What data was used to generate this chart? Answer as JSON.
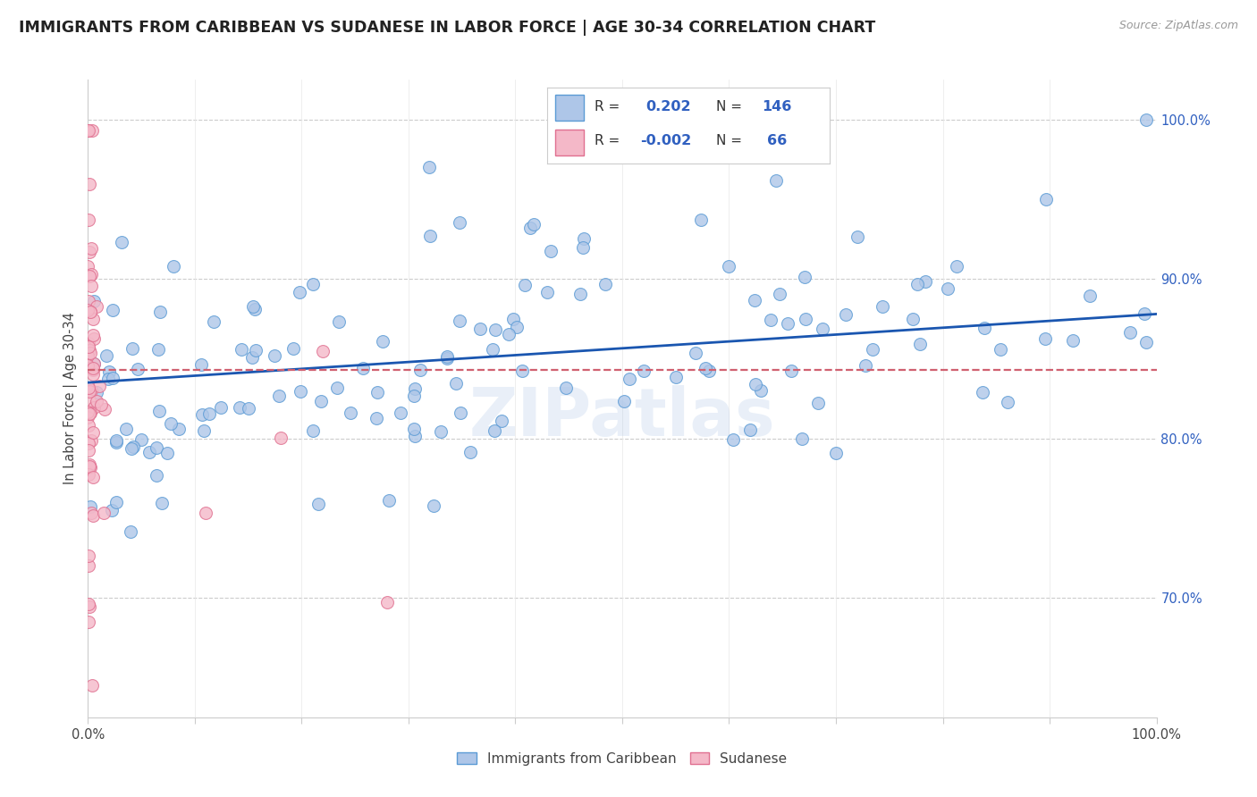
{
  "title": "IMMIGRANTS FROM CARIBBEAN VS SUDANESE IN LABOR FORCE | AGE 30-34 CORRELATION CHART",
  "source": "Source: ZipAtlas.com",
  "ylabel": "In Labor Force | Age 30-34",
  "xmin": 0.0,
  "xmax": 1.0,
  "ymin": 0.625,
  "ymax": 1.025,
  "blue_color": "#aec6e8",
  "pink_color": "#f4b8c8",
  "blue_edge": "#5b9bd5",
  "pink_edge": "#e07090",
  "trendline_blue": "#1a56b0",
  "trendline_pink": "#d06070",
  "watermark": "ZIPatlas",
  "R_blue": "0.202",
  "N_blue": "146",
  "R_pink": "-0.002",
  "N_pink": "66",
  "series_names": [
    "Immigrants from Caribbean",
    "Sudanese"
  ],
  "blue_trendline_y0": 0.835,
  "blue_trendline_y1": 0.878,
  "pink_trendline_y0": 0.843,
  "pink_trendline_y1": 0.843
}
